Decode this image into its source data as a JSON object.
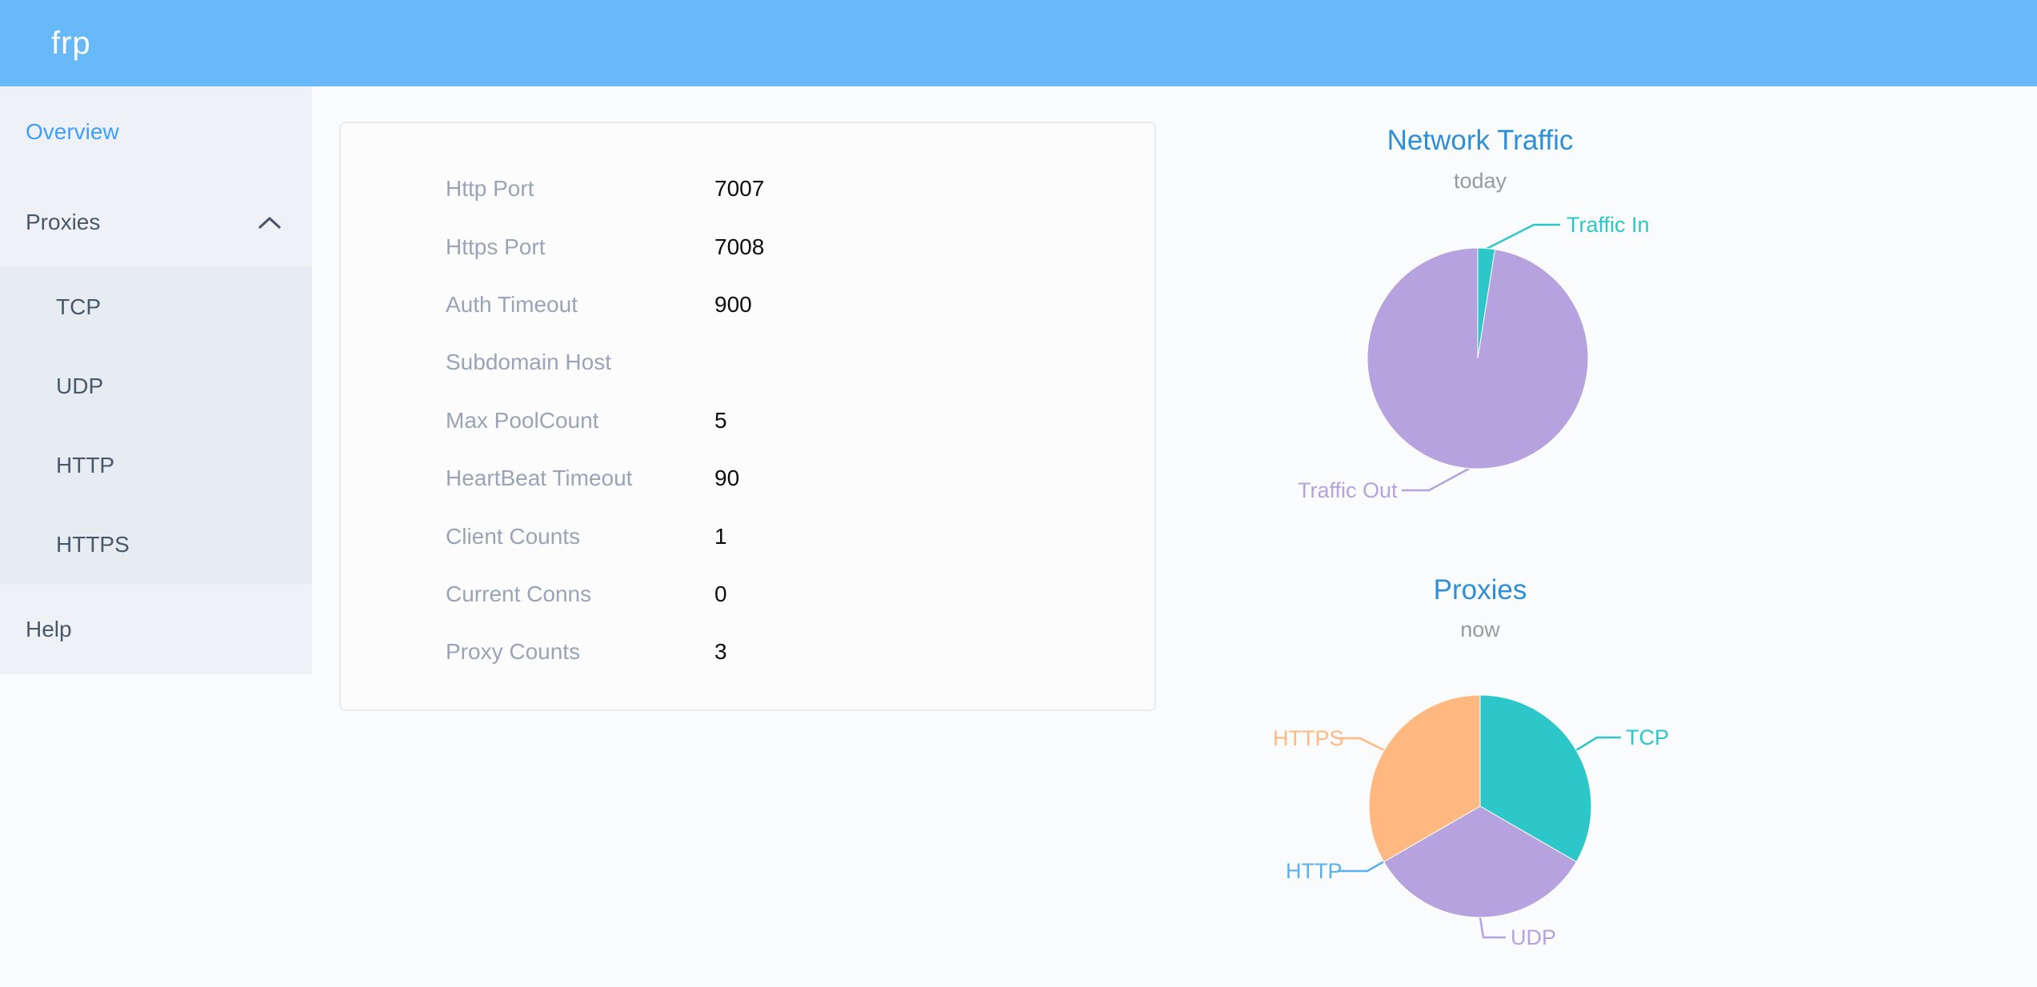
{
  "header": {
    "logo": "frp"
  },
  "sidebar": {
    "overview": {
      "label": "Overview"
    },
    "proxies": {
      "label": "Proxies",
      "expanded": true
    },
    "proxy_types": [
      {
        "label": "TCP"
      },
      {
        "label": "UDP"
      },
      {
        "label": "HTTP"
      },
      {
        "label": "HTTPS"
      }
    ],
    "help": {
      "label": "Help"
    }
  },
  "server_info": {
    "rows": [
      {
        "label": "Http Port",
        "value": "7007"
      },
      {
        "label": "Https Port",
        "value": "7008"
      },
      {
        "label": "Auth Timeout",
        "value": "900"
      },
      {
        "label": "Subdomain Host",
        "value": ""
      },
      {
        "label": "Max PoolCount",
        "value": "5"
      },
      {
        "label": "HeartBeat Timeout",
        "value": "90"
      },
      {
        "label": "Client Counts",
        "value": "1"
      },
      {
        "label": "Current Conns",
        "value": "0"
      },
      {
        "label": "Proxy Counts",
        "value": "3"
      }
    ]
  },
  "chart_data": [
    {
      "type": "pie",
      "title": "Network Traffic",
      "subtitle": "today",
      "legend_position": "callout-labels",
      "series": [
        {
          "name": "Traffic In",
          "value": 2.5,
          "color": "#2ec7c9"
        },
        {
          "name": "Traffic Out",
          "value": 97.5,
          "color": "#b6a2de"
        }
      ],
      "note": "values are percentages estimated from slice angles; no numeric labels shown"
    },
    {
      "type": "pie",
      "title": "Proxies",
      "subtitle": "now",
      "legend_position": "callout-labels",
      "series": [
        {
          "name": "TCP",
          "value": 1,
          "color": "#2ec7c9"
        },
        {
          "name": "UDP",
          "value": 1,
          "color": "#b6a2de"
        },
        {
          "name": "HTTP",
          "value": 0,
          "color": "#5ab1ef"
        },
        {
          "name": "HTTPS",
          "value": 1,
          "color": "#ffb980"
        }
      ]
    }
  ],
  "colors": {
    "header_bg": "#68b9f8",
    "logo_text": "#ffffff",
    "accent_active": "#409eff",
    "sidebar_text": "#48576a",
    "chart_title": "#2d8fd8",
    "chart_subtitle": "#9a9a9a",
    "card_label": "#9aa4b6",
    "card_value": "#0d0d0d"
  }
}
